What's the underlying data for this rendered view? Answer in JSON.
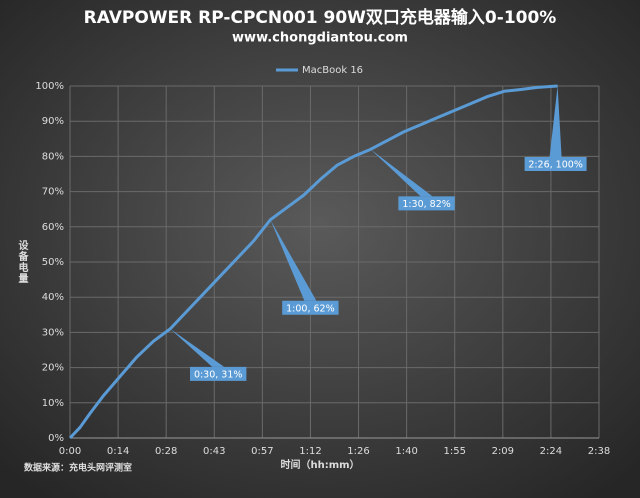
{
  "chart_data": {
    "type": "line",
    "title": "RAVPOWER RP-CPCN001 90W双口充电器输入0-100%",
    "subtitle": "www.chongdiantou.com",
    "x_label": "时间（hh:mm）",
    "y_label": "设备电量",
    "source": "数据来源：充电头网评测室",
    "x": [
      0,
      3,
      6,
      10,
      15,
      20,
      25,
      30,
      35,
      40,
      45,
      50,
      55,
      60,
      65,
      70,
      75,
      80,
      85,
      90,
      95,
      100,
      105,
      110,
      115,
      120,
      125,
      130,
      135,
      140,
      146
    ],
    "series": [
      {
        "name": "MacBook 16",
        "color": "#5b9bd5",
        "values": [
          0,
          3,
          7,
          12,
          17.5,
          23,
          27.5,
          31,
          36,
          41,
          46,
          51,
          56,
          62,
          65.5,
          69,
          73.5,
          77.5,
          80,
          82,
          84.5,
          87,
          89,
          91,
          93,
          95,
          97,
          98.5,
          99,
          99.6,
          100
        ],
        "value_labels": [
          null,
          null,
          null,
          null,
          null,
          null,
          null,
          "0:30, 31%",
          null,
          null,
          null,
          null,
          null,
          "1:00, 62%",
          null,
          null,
          null,
          null,
          null,
          "1:30, 82%",
          null,
          null,
          null,
          null,
          null,
          null,
          null,
          null,
          null,
          null,
          "2:26, 100%"
        ]
      }
    ],
    "xlim": [
      0,
      158.4
    ],
    "xticks": [
      {
        "value": 0,
        "label": "0:00"
      },
      {
        "value": 14.4,
        "label": "0:14"
      },
      {
        "value": 28.8,
        "label": "0:28"
      },
      {
        "value": 43.2,
        "label": "0:43"
      },
      {
        "value": 57.6,
        "label": "0:57"
      },
      {
        "value": 72,
        "label": "1:12"
      },
      {
        "value": 86.4,
        "label": "1:26"
      },
      {
        "value": 100.8,
        "label": "1:40"
      },
      {
        "value": 115.2,
        "label": "1:55"
      },
      {
        "value": 129.6,
        "label": "2:09"
      },
      {
        "value": 144,
        "label": "2:24"
      },
      {
        "value": 158.4,
        "label": "2:38"
      }
    ],
    "ylim": [
      0,
      100
    ],
    "yticks": [
      {
        "value": 0,
        "label": "0%"
      },
      {
        "value": 10,
        "label": "10%"
      },
      {
        "value": 20,
        "label": "20%"
      },
      {
        "value": 30,
        "label": "30%"
      },
      {
        "value": 40,
        "label": "40%"
      },
      {
        "value": 50,
        "label": "50%"
      },
      {
        "value": 60,
        "label": "60%"
      },
      {
        "value": 70,
        "label": "70%"
      },
      {
        "value": 80,
        "label": "80%"
      },
      {
        "value": 90,
        "label": "90%"
      },
      {
        "value": 100,
        "label": "100%"
      }
    ],
    "grid": true,
    "legend": "top"
  }
}
